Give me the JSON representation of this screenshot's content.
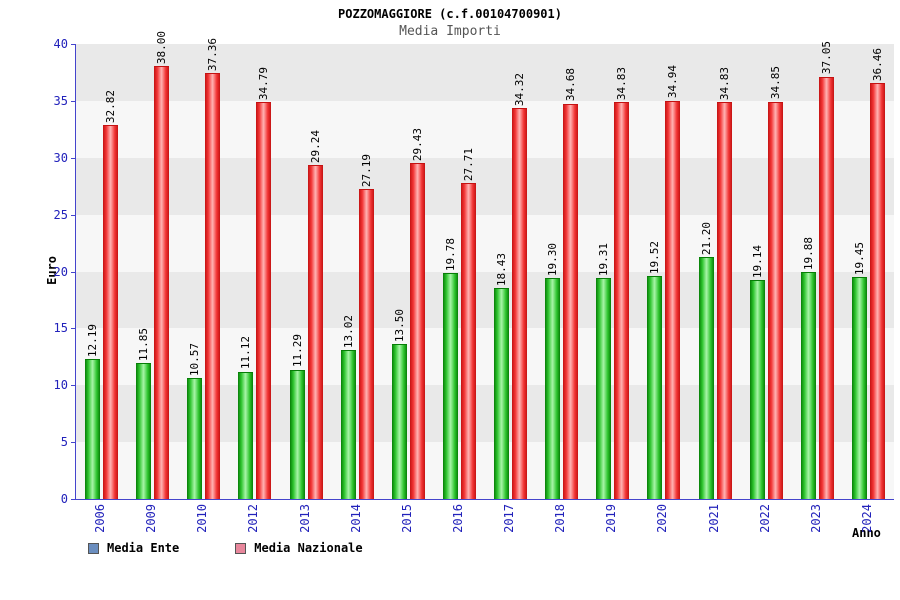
{
  "header": {
    "title": "POZZOMAGGIORE (c.f.00104700901)",
    "subtitle": "Media Importi"
  },
  "chart_data": {
    "type": "bar",
    "title": "POZZOMAGGIORE (c.f.00104700901)",
    "subtitle": "Media Importi",
    "xlabel": "Anno",
    "ylabel": "Euro",
    "ylim": [
      0,
      40
    ],
    "ytick_step": 5,
    "grid": "banded-horizontal",
    "legend_position": "bottom-left",
    "categories": [
      "2006",
      "2009",
      "2010",
      "2012",
      "2013",
      "2014",
      "2015",
      "2016",
      "2017",
      "2018",
      "2019",
      "2020",
      "2021",
      "2022",
      "2023",
      "2024"
    ],
    "series": [
      {
        "name": "Media Ente",
        "values": [
          12.19,
          11.85,
          10.57,
          11.12,
          11.29,
          13.02,
          13.5,
          19.78,
          18.43,
          19.3,
          19.31,
          19.52,
          21.2,
          19.14,
          19.88,
          19.45
        ],
        "gradient": [
          "#067d06",
          "#2ec42e",
          "#a8f5a8"
        ],
        "swatch": "#6b8ebf"
      },
      {
        "name": "Media Nazionale",
        "values": [
          32.82,
          38.0,
          37.36,
          34.79,
          29.24,
          27.19,
          29.43,
          27.71,
          34.32,
          34.68,
          34.83,
          34.94,
          34.83,
          34.85,
          37.05,
          36.46
        ],
        "gradient": [
          "#c41212",
          "#f23535",
          "#ffb4b4"
        ],
        "swatch": "#e8879c"
      }
    ]
  },
  "colors": {
    "axis_text": "#2222bb",
    "axis_line": "#4444cc",
    "band_dark": "#e9e9e9",
    "band_light": "#f7f7f7",
    "value_label": "#000000",
    "subtitle": "#555555"
  }
}
